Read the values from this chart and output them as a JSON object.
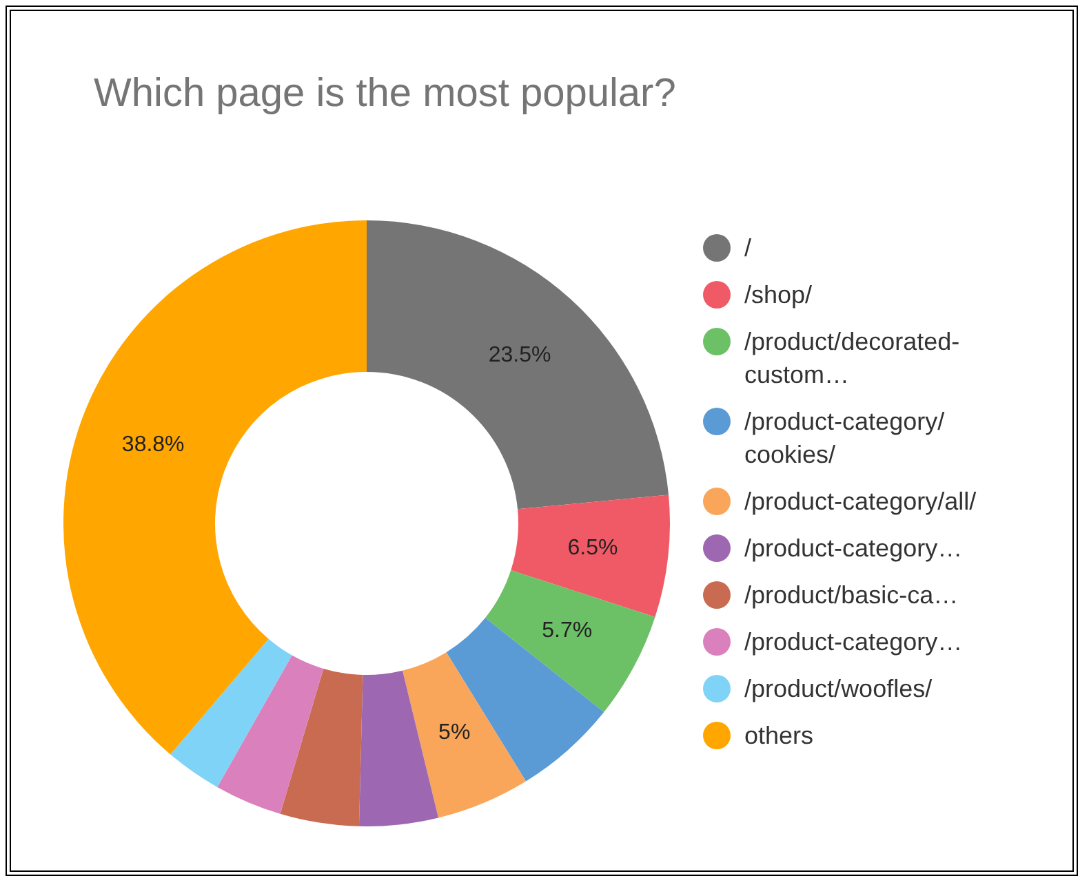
{
  "chart_data": {
    "type": "donut",
    "title": "Which page is the most popular?",
    "categories": [
      "/",
      "/shop/",
      "/product/decorated-custom…",
      "/product-category/cookies/",
      "/product-category/all/",
      "/product-category…",
      "/product/basic-ca…",
      "/product-category…",
      "/product/woofles/",
      "others"
    ],
    "values": [
      23.5,
      6.5,
      5.7,
      5.5,
      5,
      4.2,
      4.2,
      3.6,
      3.0,
      38.8
    ],
    "colors": [
      "#757575",
      "#ef5a66",
      "#6cc065",
      "#5b9bd5",
      "#f9a65a",
      "#9e67b2",
      "#c96b50",
      "#da80bd",
      "#7fd3f7",
      "#ffa600"
    ],
    "value_labels": [
      "23.5%",
      "6.5%",
      "5.7%",
      null,
      "5%",
      null,
      null,
      null,
      null,
      "38.8%"
    ],
    "legend": "right"
  }
}
